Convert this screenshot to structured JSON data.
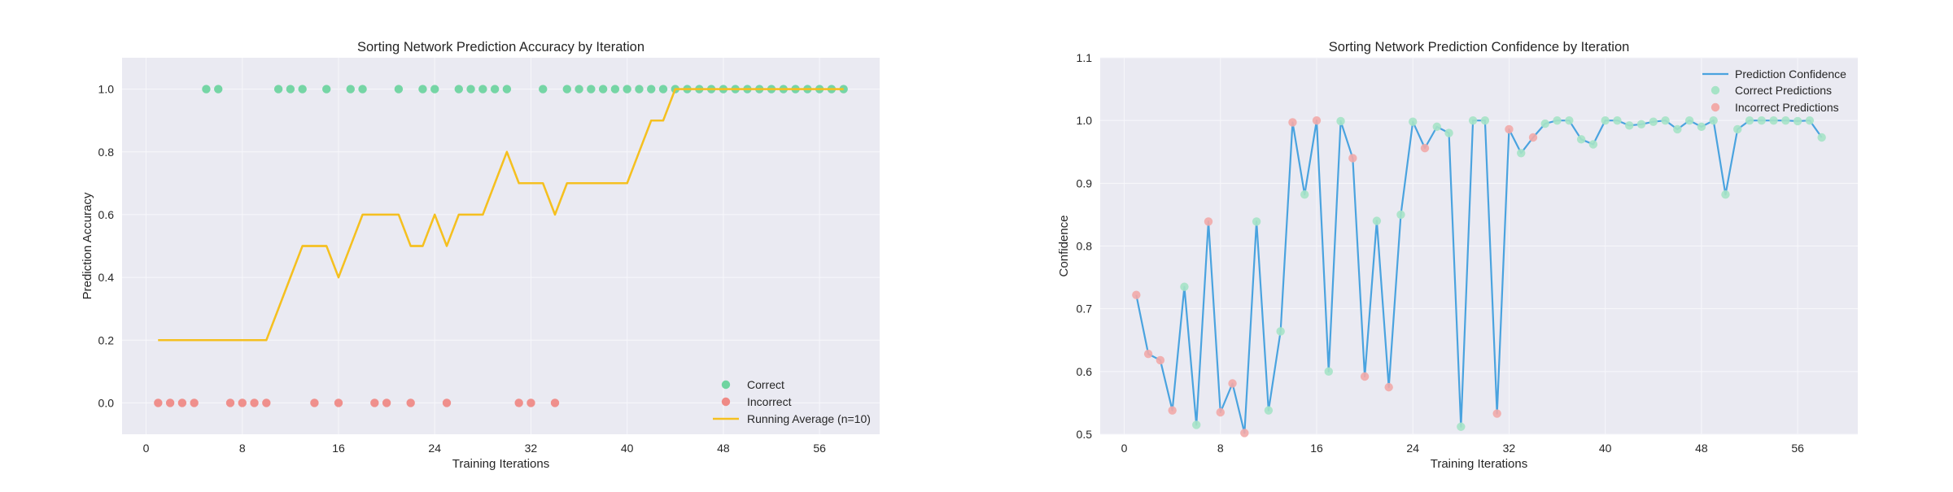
{
  "colors": {
    "panel_bg": "#eaeaf2",
    "grid": "#f7f7fb",
    "correct": "#6fd4a0",
    "incorrect": "#ef8a86",
    "running_avg": "#f5c020",
    "confidence_line": "#4aa3df",
    "correct_marker_light": "#a6e3c6",
    "incorrect_marker_light": "#f2aaa8"
  },
  "chart_data": [
    {
      "type": "scatter",
      "title": "Sorting Network Prediction Accuracy by Iteration",
      "xlabel": "Training Iterations",
      "ylabel": "Prediction Accuracy",
      "xlim": [
        -2,
        61
      ],
      "ylim": [
        -0.1,
        1.1
      ],
      "xticks": [
        0,
        8,
        16,
        24,
        32,
        40,
        48,
        56
      ],
      "yticks": [
        0.0,
        0.2,
        0.4,
        0.6,
        0.8,
        1.0
      ],
      "ytick_labels": [
        "0.0",
        "0.2",
        "0.4",
        "0.6",
        "0.8",
        "1.0"
      ],
      "grid": true,
      "legend_position": "bottom-right",
      "series": [
        {
          "name": "Correct",
          "kind": "scatter",
          "x": [
            5,
            6,
            11,
            12,
            13,
            15,
            17,
            18,
            21,
            23,
            24,
            26,
            27,
            28,
            29,
            30,
            33,
            35,
            36,
            37,
            38,
            39,
            40,
            41,
            42,
            43,
            44,
            45,
            46,
            47,
            48,
            49,
            50,
            51,
            52,
            53,
            54,
            55,
            56,
            57,
            58
          ],
          "y": [
            1,
            1,
            1,
            1,
            1,
            1,
            1,
            1,
            1,
            1,
            1,
            1,
            1,
            1,
            1,
            1,
            1,
            1,
            1,
            1,
            1,
            1,
            1,
            1,
            1,
            1,
            1,
            1,
            1,
            1,
            1,
            1,
            1,
            1,
            1,
            1,
            1,
            1,
            1,
            1,
            1
          ]
        },
        {
          "name": "Incorrect",
          "kind": "scatter",
          "x": [
            1,
            2,
            3,
            4,
            7,
            8,
            9,
            10,
            14,
            16,
            19,
            20,
            22,
            25,
            31,
            32,
            34
          ],
          "y": [
            0,
            0,
            0,
            0,
            0,
            0,
            0,
            0,
            0,
            0,
            0,
            0,
            0,
            0,
            0,
            0,
            0
          ]
        },
        {
          "name": "Running Average (n=10)",
          "kind": "line",
          "x": [
            1,
            2,
            3,
            4,
            5,
            6,
            7,
            8,
            9,
            10,
            11,
            12,
            13,
            14,
            15,
            16,
            17,
            18,
            19,
            20,
            21,
            22,
            23,
            24,
            25,
            26,
            27,
            28,
            29,
            30,
            31,
            32,
            33,
            34,
            35,
            36,
            37,
            38,
            39,
            40,
            41,
            42,
            43,
            44,
            45,
            46,
            47,
            48,
            49,
            50,
            51,
            52,
            53,
            54,
            55,
            56,
            57,
            58
          ],
          "y": [
            0.2,
            0.2,
            0.2,
            0.2,
            0.2,
            0.2,
            0.2,
            0.2,
            0.2,
            0.2,
            0.3,
            0.4,
            0.5,
            0.5,
            0.5,
            0.4,
            0.5,
            0.6,
            0.6,
            0.6,
            0.6,
            0.5,
            0.5,
            0.6,
            0.5,
            0.6,
            0.6,
            0.6,
            0.7,
            0.8,
            0.7,
            0.7,
            0.7,
            0.6,
            0.7,
            0.7,
            0.7,
            0.7,
            0.7,
            0.7,
            0.8,
            0.9,
            0.9,
            1.0,
            1.0,
            1.0,
            1.0,
            1.0,
            1.0,
            1.0,
            1.0,
            1.0,
            1.0,
            1.0,
            1.0,
            1.0,
            1.0,
            1.0
          ]
        }
      ]
    },
    {
      "type": "line",
      "title": "Sorting Network Prediction Confidence by Iteration",
      "xlabel": "Training Iterations",
      "ylabel": "Confidence",
      "xlim": [
        -2,
        61
      ],
      "ylim": [
        0.5,
        1.1
      ],
      "xticks": [
        0,
        8,
        16,
        24,
        32,
        40,
        48,
        56
      ],
      "yticks": [
        0.5,
        0.6,
        0.7,
        0.8,
        0.9,
        1.0,
        1.1
      ],
      "ytick_labels": [
        "0.5",
        "0.6",
        "0.7",
        "0.8",
        "0.9",
        "1.0",
        "1.1"
      ],
      "grid": true,
      "legend_position": "top-right",
      "series": [
        {
          "name": "Prediction Confidence",
          "kind": "line",
          "x": [
            1,
            2,
            3,
            4,
            5,
            6,
            7,
            8,
            9,
            10,
            11,
            12,
            13,
            14,
            15,
            16,
            17,
            18,
            19,
            20,
            21,
            22,
            23,
            24,
            25,
            26,
            27,
            28,
            29,
            30,
            31,
            32,
            33,
            34,
            35,
            36,
            37,
            38,
            39,
            40,
            41,
            42,
            43,
            44,
            45,
            46,
            47,
            48,
            49,
            50,
            51,
            52,
            53,
            54,
            55,
            56,
            57,
            58
          ],
          "y": [
            0.722,
            0.628,
            0.618,
            0.538,
            0.735,
            0.515,
            0.839,
            0.535,
            0.581,
            0.502,
            0.839,
            0.538,
            0.664,
            0.997,
            0.882,
            1.0,
            0.6,
            0.999,
            0.94,
            0.592,
            0.84,
            0.575,
            0.85,
            0.998,
            0.956,
            0.99,
            0.98,
            0.512,
            1.0,
            1.0,
            0.533,
            0.986,
            0.948,
            0.973,
            0.995,
            1.0,
            1.0,
            0.97,
            0.962,
            1.0,
            1.0,
            0.992,
            0.994,
            0.998,
            1.0,
            0.986,
            1.0,
            0.99,
            1.0,
            0.882,
            0.986,
            1.0,
            1.0,
            1.0,
            1.0,
            0.999,
            1.0,
            0.973
          ]
        },
        {
          "name": "Correct Predictions",
          "kind": "scatter",
          "x": [
            5,
            6,
            11,
            12,
            13,
            15,
            17,
            18,
            21,
            23,
            24,
            26,
            27,
            28,
            29,
            30,
            33,
            35,
            36,
            37,
            38,
            39,
            40,
            41,
            42,
            43,
            44,
            45,
            46,
            47,
            48,
            49,
            50,
            51,
            52,
            53,
            54,
            55,
            56,
            57,
            58
          ],
          "y": [
            0.735,
            0.515,
            0.839,
            0.538,
            0.664,
            0.882,
            0.6,
            0.999,
            0.84,
            0.85,
            0.998,
            0.99,
            0.98,
            0.512,
            1.0,
            1.0,
            0.948,
            0.995,
            1.0,
            1.0,
            0.97,
            0.962,
            1.0,
            1.0,
            0.992,
            0.994,
            0.998,
            1.0,
            0.986,
            1.0,
            0.99,
            1.0,
            0.882,
            0.986,
            1.0,
            1.0,
            1.0,
            1.0,
            0.999,
            1.0,
            0.973
          ]
        },
        {
          "name": "Incorrect Predictions",
          "kind": "scatter",
          "x": [
            1,
            2,
            3,
            4,
            7,
            8,
            9,
            10,
            14,
            16,
            19,
            20,
            22,
            25,
            31,
            32,
            34
          ],
          "y": [
            0.722,
            0.628,
            0.618,
            0.538,
            0.839,
            0.535,
            0.581,
            0.502,
            0.997,
            1.0,
            0.94,
            0.592,
            0.575,
            0.956,
            0.533,
            0.986,
            0.973
          ]
        }
      ]
    }
  ]
}
